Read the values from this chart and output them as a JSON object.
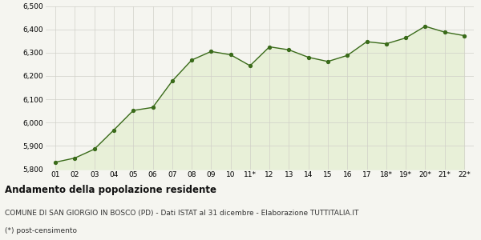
{
  "x_labels": [
    "01",
    "02",
    "03",
    "04",
    "05",
    "06",
    "07",
    "08",
    "09",
    "10",
    "11*",
    "12",
    "13",
    "14",
    "15",
    "16",
    "17",
    "18*",
    "19*",
    "20*",
    "21*",
    "22*"
  ],
  "y_values": [
    5830,
    5848,
    5886,
    5968,
    6052,
    6065,
    6178,
    6268,
    6305,
    6291,
    6244,
    6325,
    6312,
    6280,
    6262,
    6288,
    6347,
    6338,
    6363,
    6413,
    6388,
    6373
  ],
  "ylim": [
    5800,
    6500
  ],
  "yticks": [
    5800,
    5900,
    6000,
    6100,
    6200,
    6300,
    6400,
    6500
  ],
  "line_color": "#3a6b1a",
  "fill_color": "#e8f0d8",
  "marker_color": "#3a6b1a",
  "bg_color": "#f5f5f0",
  "grid_color": "#d0d0c8",
  "title": "Andamento della popolazione residente",
  "subtitle": "COMUNE DI SAN GIORGIO IN BOSCO (PD) - Dati ISTAT al 31 dicembre - Elaborazione TUTTITALIA.IT",
  "footnote": "(*) post-censimento",
  "title_fontsize": 8.5,
  "subtitle_fontsize": 6.5,
  "footnote_fontsize": 6.5,
  "tick_fontsize": 6.5,
  "ytick_fontsize": 6.5
}
